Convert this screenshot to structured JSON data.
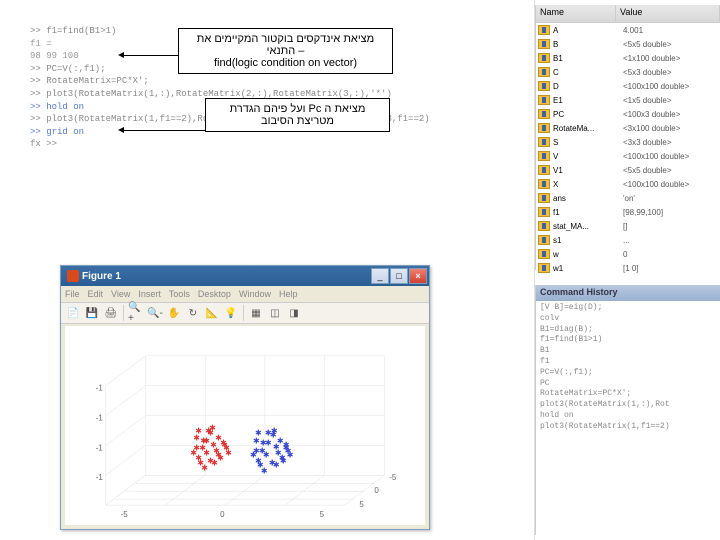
{
  "callout1": {
    "line1": "מציאת אינדקסים בוקטור המקיימים את",
    "line2": "– התנאי",
    "line3": "find(logic condition on vector)"
  },
  "callout2": {
    "line1": "מציאת ה Pc ועל פיהם הגדרת",
    "line2": "מטריצת הסיבוב"
  },
  "command_window": {
    "lines": [
      ">> f1=find(B1>1)",
      "",
      "f1 =",
      "",
      "    98    99   100",
      "",
      ">> PC=V(:,f1);",
      ">> RotateMatrix=PC*X';",
      ">> plot3(RotateMatrix(1,:),RotateMatrix(2,:),RotateMatrix(3,:),'*')",
      ">> hold on",
      ">> plot3(RotateMatrix(1,f1==2),RotateMatrix(2,f1==2),RotateMatrix(3,f1==2),'r*')",
      ">> grid on",
      "fx >>"
    ]
  },
  "figure": {
    "title": "Figure 1",
    "menus": [
      "File",
      "Edit",
      "View",
      "Insert",
      "Tools",
      "Desktop",
      "Window",
      "Help"
    ],
    "winbtns": {
      "min": "_",
      "max": "□",
      "close": "×"
    },
    "toolbar_icons": [
      "📄",
      "💾",
      "🖨",
      "🔍+",
      "🔍-",
      "✋",
      "↻",
      "📐",
      "💡",
      "▦",
      "◫",
      "◨"
    ],
    "axes": {
      "x_ticks": [
        "-5",
        "0",
        "5"
      ],
      "y_ticks": [
        "-5",
        "0",
        "5"
      ],
      "z_ticks": [
        "-1",
        "-1",
        "-1",
        "-1"
      ],
      "colors": {
        "red": "#dd3333",
        "blue": "#3344cc",
        "grid": "#e0e0e0",
        "bg": "#ffffff"
      }
    },
    "red_points": [
      [
        135,
        118
      ],
      [
        142,
        110
      ],
      [
        128,
        125
      ],
      [
        150,
        115
      ],
      [
        138,
        130
      ],
      [
        145,
        122
      ],
      [
        130,
        135
      ],
      [
        155,
        120
      ],
      [
        140,
        108
      ],
      [
        148,
        128
      ],
      [
        132,
        140
      ],
      [
        158,
        125
      ],
      [
        125,
        130
      ],
      [
        152,
        135
      ],
      [
        136,
        145
      ],
      [
        144,
        105
      ],
      [
        160,
        130
      ],
      [
        128,
        115
      ],
      [
        146,
        140
      ],
      [
        138,
        118
      ],
      [
        150,
        132
      ],
      [
        134,
        125
      ],
      [
        142,
        138
      ],
      [
        156,
        122
      ],
      [
        130,
        108
      ]
    ],
    "blue_points": [
      [
        195,
        120
      ],
      [
        205,
        112
      ],
      [
        188,
        128
      ],
      [
        212,
        118
      ],
      [
        198,
        132
      ],
      [
        208,
        124
      ],
      [
        190,
        138
      ],
      [
        218,
        122
      ],
      [
        200,
        110
      ],
      [
        210,
        130
      ],
      [
        192,
        142
      ],
      [
        220,
        128
      ],
      [
        185,
        132
      ],
      [
        215,
        138
      ],
      [
        196,
        148
      ],
      [
        206,
        108
      ],
      [
        222,
        132
      ],
      [
        188,
        118
      ],
      [
        208,
        142
      ],
      [
        200,
        120
      ],
      [
        214,
        135
      ],
      [
        194,
        128
      ],
      [
        204,
        140
      ],
      [
        218,
        125
      ],
      [
        190,
        110
      ]
    ]
  },
  "workspace": {
    "header": {
      "name": "Name",
      "value": "Value"
    },
    "rows": [
      {
        "n": "A",
        "v": "4.001"
      },
      {
        "n": "B",
        "v": "<5x5 double>"
      },
      {
        "n": "B1",
        "v": "<1x100 double>"
      },
      {
        "n": "C",
        "v": "<5x3 double>"
      },
      {
        "n": "D",
        "v": "<100x100 double>"
      },
      {
        "n": "E1",
        "v": "<1x5 double>"
      },
      {
        "n": "PC",
        "v": "<100x3 double>"
      },
      {
        "n": "RotateMa...",
        "v": "<3x100 double>"
      },
      {
        "n": "S",
        "v": "<3x3 double>"
      },
      {
        "n": "V",
        "v": "<100x100 double>"
      },
      {
        "n": "V1",
        "v": "<5x5 double>"
      },
      {
        "n": "X",
        "v": "<100x100 double>"
      },
      {
        "n": "ans",
        "v": "'on'"
      },
      {
        "n": "f1",
        "v": "[98,99,100]"
      },
      {
        "n": "stat_MA...",
        "v": "[]"
      },
      {
        "n": "s1",
        "v": "..."
      },
      {
        "n": "w",
        "v": "0"
      },
      {
        "n": "w1",
        "v": "[1 0]"
      }
    ]
  },
  "history": {
    "title": "Command History",
    "lines": [
      "[V B]=eig(D);",
      "colv",
      "B1=diag(B);",
      "f1=find(B1>1)",
      "B1",
      "f1",
      "PC=V(:,f1);",
      "PC",
      "RotateMatrix=PC*X';",
      "plot3(RotateMatrix(1,:),Rot",
      "hold on",
      "plot3(RotateMatrix(1,f1==2)"
    ]
  }
}
